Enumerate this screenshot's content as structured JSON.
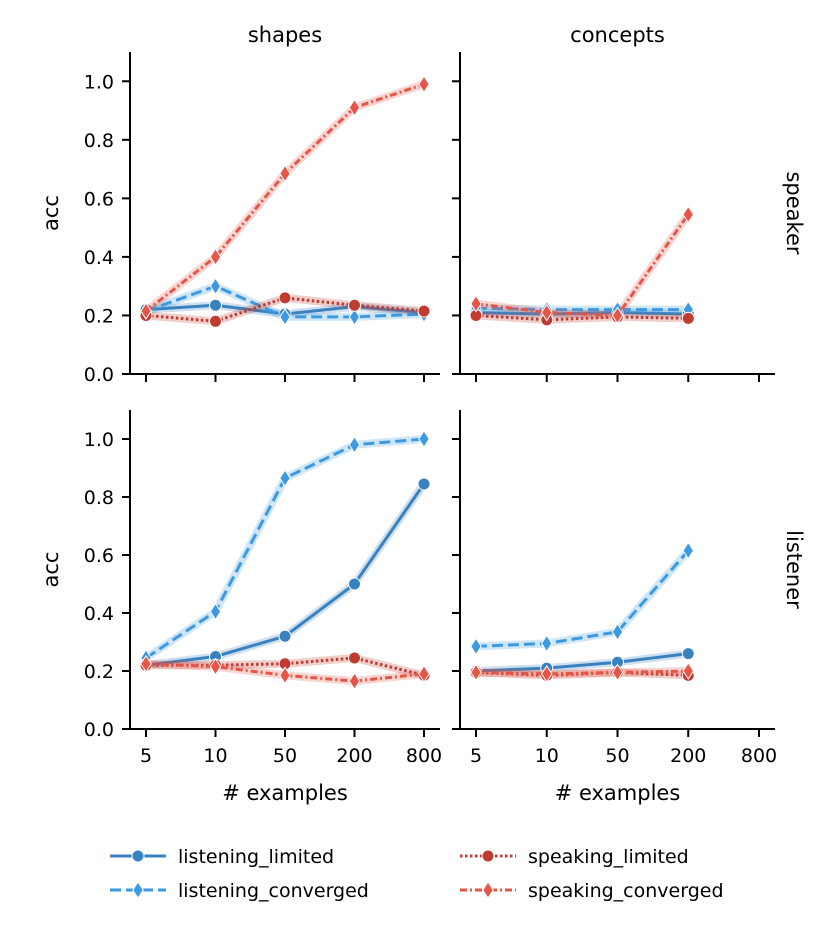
{
  "chart_data": {
    "type": "line",
    "x": [
      "5",
      "10",
      "50",
      "200",
      "800"
    ],
    "xlabel": "# examples",
    "ylabel": "acc",
    "ylim": [
      0.0,
      1.1
    ],
    "yticks": [
      "0.0",
      "0.2",
      "0.4",
      "0.6",
      "0.8",
      "1.0"
    ],
    "columns": [
      "shapes",
      "concepts"
    ],
    "rows": [
      "speaker",
      "listener"
    ],
    "series_styles": [
      {
        "name": "listening_limited",
        "color": "#3a82bf",
        "dash": "solid",
        "marker": "circle"
      },
      {
        "name": "listening_converged",
        "color": "#3d9ae0",
        "dash": "dashed",
        "marker": "diamond"
      },
      {
        "name": "speaking_limited",
        "color": "#c23b31",
        "dash": "dotted",
        "marker": "circle"
      },
      {
        "name": "speaking_converged",
        "color": "#e55649",
        "dash": "dashdot",
        "marker": "diamond"
      }
    ],
    "panels": [
      {
        "row": "speaker",
        "col": "shapes",
        "series": [
          {
            "name": "listening_limited",
            "values": [
              0.22,
              0.235,
              0.205,
              0.23,
              0.21
            ]
          },
          {
            "name": "listening_converged",
            "values": [
              0.215,
              0.3,
              0.195,
              0.195,
              0.205
            ]
          },
          {
            "name": "speaking_limited",
            "values": [
              0.2,
              0.18,
              0.26,
              0.235,
              0.215
            ]
          },
          {
            "name": "speaking_converged",
            "values": [
              0.215,
              0.4,
              0.685,
              0.91,
              0.99
            ]
          }
        ]
      },
      {
        "row": "speaker",
        "col": "concepts",
        "series": [
          {
            "name": "listening_limited",
            "values": [
              0.21,
              0.205,
              0.21,
              0.205,
              null
            ]
          },
          {
            "name": "listening_converged",
            "values": [
              0.225,
              0.22,
              0.22,
              0.22,
              null
            ]
          },
          {
            "name": "speaking_limited",
            "values": [
              0.2,
              0.185,
              0.195,
              0.19,
              null
            ]
          },
          {
            "name": "speaking_converged",
            "values": [
              0.24,
              0.21,
              0.2,
              0.545,
              null
            ]
          }
        ]
      },
      {
        "row": "listener",
        "col": "shapes",
        "series": [
          {
            "name": "listening_limited",
            "values": [
              0.22,
              0.25,
              0.32,
              0.5,
              0.845
            ]
          },
          {
            "name": "listening_converged",
            "values": [
              0.245,
              0.405,
              0.865,
              0.98,
              1.0
            ]
          },
          {
            "name": "speaking_limited",
            "values": [
              0.22,
              0.22,
              0.225,
              0.245,
              0.185
            ]
          },
          {
            "name": "speaking_converged",
            "values": [
              0.225,
              0.215,
              0.185,
              0.165,
              0.19
            ]
          }
        ]
      },
      {
        "row": "listener",
        "col": "concepts",
        "series": [
          {
            "name": "listening_limited",
            "values": [
              0.2,
              0.21,
              0.23,
              0.26,
              null
            ]
          },
          {
            "name": "listening_converged",
            "values": [
              0.285,
              0.295,
              0.335,
              0.615,
              null
            ]
          },
          {
            "name": "speaking_limited",
            "values": [
              0.195,
              0.185,
              0.195,
              0.185,
              null
            ]
          },
          {
            "name": "speaking_converged",
            "values": [
              0.195,
              0.19,
              0.195,
              0.2,
              null
            ]
          }
        ]
      }
    ],
    "legend": [
      "listening_limited",
      "listening_converged",
      "speaking_limited",
      "speaking_converged"
    ]
  }
}
